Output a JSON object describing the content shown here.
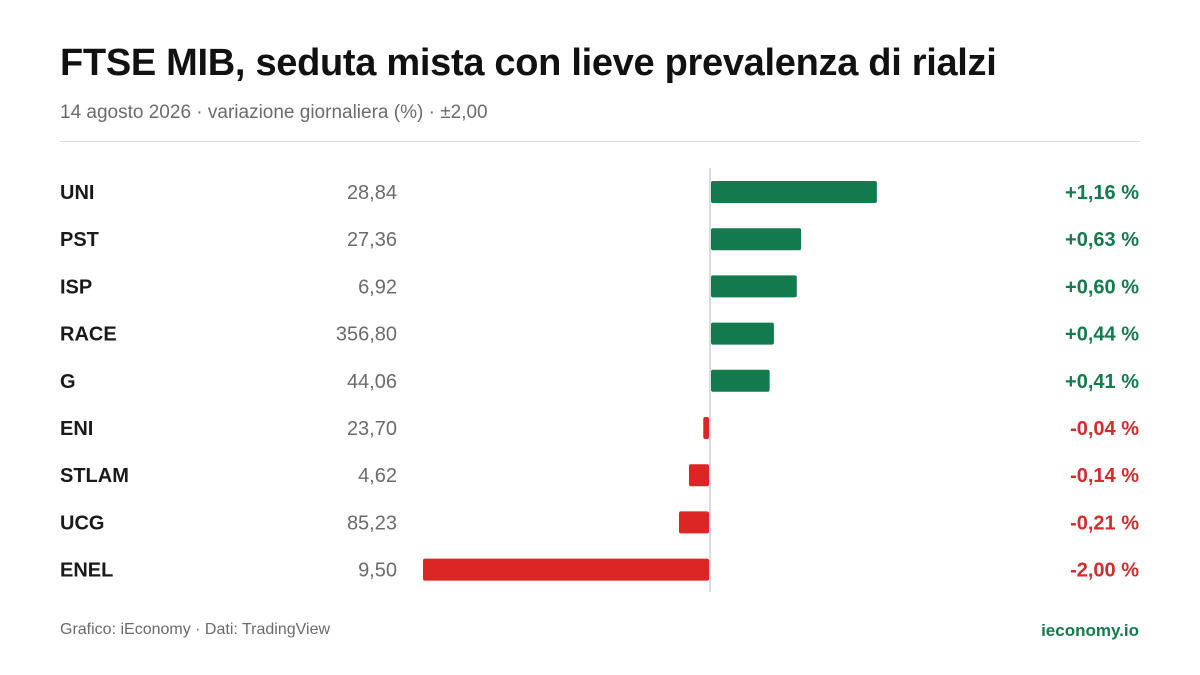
{
  "header": {
    "title": "FTSE MIB, seduta mista con lieve prevalenza di rialzi",
    "subtitle": "14 agosto 2026 · variazione giornaliera (%) · ±2,00"
  },
  "footer": {
    "credits": "Grafico: iEconomy · Dati: TradingView",
    "site": "ieconomy.io"
  },
  "colors": {
    "positive": "#127a4c",
    "negative": "#dc2626",
    "positive_text": "#157a4d",
    "negative_text": "#d62b2b",
    "zero_line": "#d0d0d0"
  },
  "chart_data": {
    "type": "bar",
    "orientation": "horizontal-diverging",
    "xlim": [
      -2.0,
      2.0
    ],
    "categories": [
      "UNI",
      "PST",
      "ISP",
      "RACE",
      "G",
      "ENI",
      "STLAM",
      "UCG",
      "ENEL"
    ],
    "prices": [
      "28,84",
      "27,36",
      "6,92",
      "356,80",
      "44,06",
      "23,70",
      "4,62",
      "85,23",
      "9,50"
    ],
    "values": [
      1.16,
      0.63,
      0.6,
      0.44,
      0.41,
      -0.04,
      -0.14,
      -0.21,
      -2.0
    ],
    "value_labels": [
      "+1,16 %",
      "+0,63 %",
      "+0,60 %",
      "+0,44 %",
      "+0,41 %",
      "-0,04 %",
      "-0,14 %",
      "-0,21 %",
      "-2,00 %"
    ]
  }
}
